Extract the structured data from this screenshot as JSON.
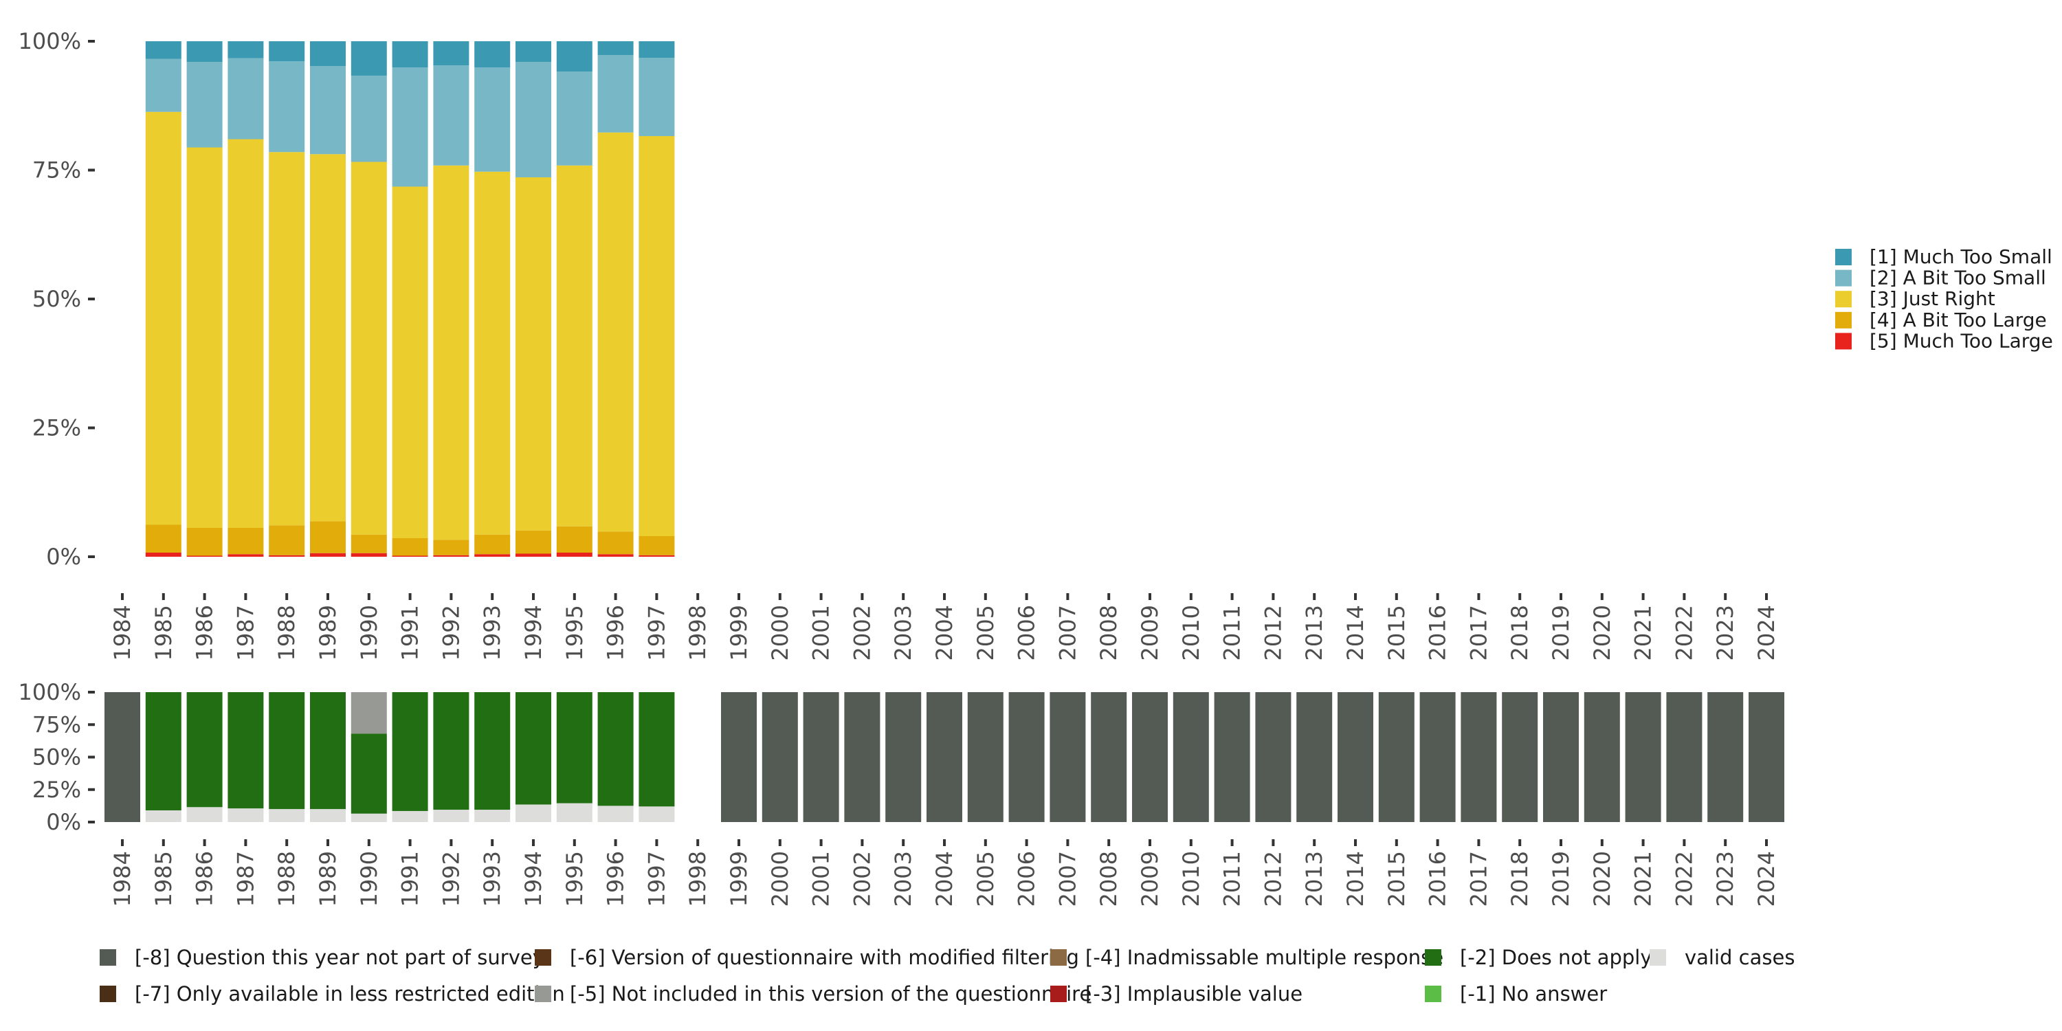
{
  "chart_data": [
    {
      "type": "bar",
      "stacked": true,
      "normalized": true,
      "categories": [
        "1984",
        "1985",
        "1986",
        "1987",
        "1988",
        "1989",
        "1990",
        "1991",
        "1992",
        "1993",
        "1994",
        "1995",
        "1996",
        "1997",
        "1998",
        "1999",
        "2000",
        "2001",
        "2002",
        "2003",
        "2004",
        "2005",
        "2006",
        "2007",
        "2008",
        "2009",
        "2010",
        "2011",
        "2012",
        "2013",
        "2014",
        "2015",
        "2016",
        "2017",
        "2018",
        "2019",
        "2020",
        "2021",
        "2022",
        "2023",
        "2024"
      ],
      "y_ticks": [
        "0%",
        "25%",
        "50%",
        "75%",
        "100%"
      ],
      "ylim": [
        0,
        100
      ],
      "legend_position": "right",
      "series": [
        {
          "name": "[5] Much Too Large",
          "color": "#e8221c",
          "values": [
            null,
            0.8,
            0.2,
            0.5,
            0.3,
            0.7,
            0.7,
            0.2,
            0.3,
            0.5,
            0.6,
            0.8,
            0.5,
            0.3,
            null,
            null,
            null,
            null,
            null,
            null,
            null,
            null,
            null,
            null,
            null,
            null,
            null,
            null,
            null,
            null,
            null,
            null,
            null,
            null,
            null,
            null,
            null,
            null,
            null,
            null,
            null
          ]
        },
        {
          "name": "[4] A Bit Too Large",
          "color": "#e2ac0b",
          "values": [
            null,
            5.4,
            5.4,
            5.1,
            5.8,
            6.2,
            3.6,
            3.4,
            3.0,
            3.8,
            4.5,
            5.1,
            4.4,
            3.7,
            null,
            null,
            null,
            null,
            null,
            null,
            null,
            null,
            null,
            null,
            null,
            null,
            null,
            null,
            null,
            null,
            null,
            null,
            null,
            null,
            null,
            null,
            null,
            null,
            null,
            null,
            null
          ]
        },
        {
          "name": "[3] Just Right",
          "color": "#ebcd2d",
          "values": [
            null,
            80.1,
            73.8,
            75.4,
            72.4,
            71.2,
            72.3,
            68.2,
            72.6,
            70.4,
            68.5,
            70.0,
            77.4,
            77.6,
            null,
            null,
            null,
            null,
            null,
            null,
            null,
            null,
            null,
            null,
            null,
            null,
            null,
            null,
            null,
            null,
            null,
            null,
            null,
            null,
            null,
            null,
            null,
            null,
            null,
            null,
            null
          ]
        },
        {
          "name": "[2] A Bit Too Small",
          "color": "#78b7c6",
          "values": [
            null,
            10.3,
            16.6,
            15.7,
            17.6,
            17.1,
            16.7,
            23.1,
            19.4,
            20.2,
            22.4,
            18.2,
            15.0,
            15.2,
            null,
            null,
            null,
            null,
            null,
            null,
            null,
            null,
            null,
            null,
            null,
            null,
            null,
            null,
            null,
            null,
            null,
            null,
            null,
            null,
            null,
            null,
            null,
            null,
            null,
            null,
            null
          ]
        },
        {
          "name": "[1] Much Too Small",
          "color": "#3b9ab2",
          "values": [
            null,
            3.4,
            4.0,
            3.3,
            3.9,
            4.8,
            6.7,
            5.1,
            4.7,
            5.1,
            4.0,
            5.9,
            2.7,
            3.2,
            null,
            null,
            null,
            null,
            null,
            null,
            null,
            null,
            null,
            null,
            null,
            null,
            null,
            null,
            null,
            null,
            null,
            null,
            null,
            null,
            null,
            null,
            null,
            null,
            null,
            null,
            null
          ]
        }
      ]
    },
    {
      "type": "bar",
      "stacked": true,
      "normalized": true,
      "categories": [
        "1984",
        "1985",
        "1986",
        "1987",
        "1988",
        "1989",
        "1990",
        "1991",
        "1992",
        "1993",
        "1994",
        "1995",
        "1996",
        "1997",
        "1998",
        "1999",
        "2000",
        "2001",
        "2002",
        "2003",
        "2004",
        "2005",
        "2006",
        "2007",
        "2008",
        "2009",
        "2010",
        "2011",
        "2012",
        "2013",
        "2014",
        "2015",
        "2016",
        "2017",
        "2018",
        "2019",
        "2020",
        "2021",
        "2022",
        "2023",
        "2024"
      ],
      "y_ticks": [
        "0%",
        "25%",
        "50%",
        "75%",
        "100%"
      ],
      "ylim": [
        0,
        100
      ],
      "legend_position": "bottom",
      "series": [
        {
          "name": "valid cases",
          "color": "#dddedb",
          "values": [
            0,
            9,
            11.5,
            10.5,
            10,
            10,
            6.5,
            8.5,
            9.5,
            9.5,
            13.5,
            14.5,
            12.5,
            12,
            0,
            0,
            0,
            0,
            0,
            0,
            0,
            0,
            0,
            0,
            0,
            0,
            0,
            0,
            0,
            0,
            0,
            0,
            0,
            0,
            0,
            0,
            0,
            0,
            0,
            0,
            0
          ]
        },
        {
          "name": "[-1] No answer",
          "color": "#5bbd45",
          "values": [
            0,
            0,
            0,
            0,
            0,
            0,
            0,
            0,
            0,
            0,
            0,
            0,
            0,
            0,
            0,
            0,
            0,
            0,
            0,
            0,
            0,
            0,
            0,
            0,
            0,
            0,
            0,
            0,
            0,
            0,
            0,
            0,
            0,
            0,
            0,
            0,
            0,
            0,
            0,
            0,
            0
          ]
        },
        {
          "name": "[-2] Does not apply",
          "color": "#226e13",
          "values": [
            0,
            91,
            88.5,
            89.5,
            90,
            90,
            61.5,
            91.5,
            90.5,
            90.5,
            86.5,
            85.5,
            87.5,
            88,
            0,
            0,
            0,
            0,
            0,
            0,
            0,
            0,
            0,
            0,
            0,
            0,
            0,
            0,
            0,
            0,
            0,
            0,
            0,
            0,
            0,
            0,
            0,
            0,
            0,
            0,
            0
          ]
        },
        {
          "name": "[-3] Implausible value",
          "color": "#a81c1c",
          "values": [
            0,
            0,
            0,
            0,
            0,
            0,
            0,
            0,
            0,
            0,
            0,
            0,
            0,
            0,
            0,
            0,
            0,
            0,
            0,
            0,
            0,
            0,
            0,
            0,
            0,
            0,
            0,
            0,
            0,
            0,
            0,
            0,
            0,
            0,
            0,
            0,
            0,
            0,
            0,
            0,
            0
          ]
        },
        {
          "name": "[-4] Inadmissable multiple response",
          "color": "#8b6a44",
          "values": [
            0,
            0,
            0,
            0,
            0,
            0,
            0,
            0,
            0,
            0,
            0,
            0,
            0,
            0,
            0,
            0,
            0,
            0,
            0,
            0,
            0,
            0,
            0,
            0,
            0,
            0,
            0,
            0,
            0,
            0,
            0,
            0,
            0,
            0,
            0,
            0,
            0,
            0,
            0,
            0,
            0
          ]
        },
        {
          "name": "[-5] Not included in this version of the questionnaire",
          "color": "#979a94",
          "values": [
            0,
            0,
            0,
            0,
            0,
            0,
            32,
            0,
            0,
            0,
            0,
            0,
            0,
            0,
            0,
            0,
            0,
            0,
            0,
            0,
            0,
            0,
            0,
            0,
            0,
            0,
            0,
            0,
            0,
            0,
            0,
            0,
            0,
            0,
            0,
            0,
            0,
            0,
            0,
            0,
            0
          ]
        },
        {
          "name": "[-6] Version of questionnaire with modified filtering",
          "color": "#5b3518",
          "values": [
            0,
            0,
            0,
            0,
            0,
            0,
            0,
            0,
            0,
            0,
            0,
            0,
            0,
            0,
            0,
            0,
            0,
            0,
            0,
            0,
            0,
            0,
            0,
            0,
            0,
            0,
            0,
            0,
            0,
            0,
            0,
            0,
            0,
            0,
            0,
            0,
            0,
            0,
            0,
            0,
            0
          ]
        },
        {
          "name": "[-7] Only available in less restricted edition",
          "color": "#4a2e16",
          "values": [
            0,
            0,
            0,
            0,
            0,
            0,
            0,
            0,
            0,
            0,
            0,
            0,
            0,
            0,
            0,
            0,
            0,
            0,
            0,
            0,
            0,
            0,
            0,
            0,
            0,
            0,
            0,
            0,
            0,
            0,
            0,
            0,
            0,
            0,
            0,
            0,
            0,
            0,
            0,
            0,
            0
          ]
        },
        {
          "name": "[-8] Question this year not part of survey",
          "color": "#545a54",
          "values": [
            100,
            0,
            0,
            0,
            0,
            0,
            0,
            0,
            0,
            0,
            0,
            0,
            0,
            0,
            0,
            100,
            100,
            100,
            100,
            100,
            100,
            100,
            100,
            100,
            100,
            100,
            100,
            100,
            100,
            100,
            100,
            100,
            100,
            100,
            100,
            100,
            100,
            100,
            100,
            100,
            100
          ]
        }
      ]
    }
  ],
  "legend_bottom_order": [
    "[-8] Question this year not part of survey",
    "[-6] Version of questionnaire with modified filtering",
    "[-4] Inadmissable multiple response",
    "[-2] Does not apply",
    "valid cases",
    "[-7] Only available in less restricted edition",
    "[-5] Not included in this version of the questionnaire",
    "[-3] Implausible value",
    "[-1] No answer"
  ],
  "legend_right_order": [
    "[1] Much Too Small",
    "[2] A Bit Too Small",
    "[3] Just Right",
    "[4] A Bit Too Large",
    "[5] Much Too Large"
  ]
}
